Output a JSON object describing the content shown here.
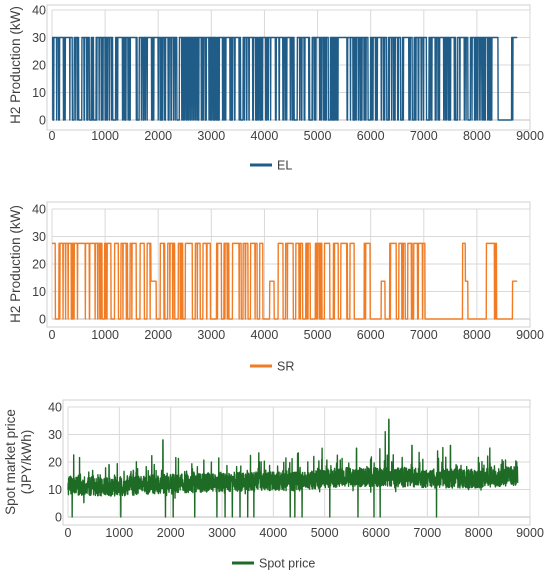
{
  "chart_data": [
    {
      "type": "line",
      "title": "",
      "xlabel": "",
      "ylabel": "H2 Production (kW)",
      "xlim": [
        0,
        9000
      ],
      "ylim": [
        0,
        40
      ],
      "xticks": [
        0,
        1000,
        2000,
        3000,
        4000,
        5000,
        6000,
        7000,
        8000,
        9000
      ],
      "yticks": [
        0,
        10,
        20,
        30,
        40
      ],
      "grid": true,
      "legend_position": "bottom",
      "series": [
        {
          "name": "EL",
          "color": "#1f5c87",
          "pattern": "on-off hourly dispatch between 0 and 30 kW",
          "max_value": 30,
          "min_value": 0,
          "active_segments_hours": [
            [
              0,
              380
            ],
            [
              420,
              500
            ],
            [
              560,
              700
            ],
            [
              740,
              780
            ],
            [
              830,
              1140
            ],
            [
              1200,
              1600
            ],
            [
              1640,
              2350
            ],
            [
              2400,
              3550
            ],
            [
              3600,
              4560
            ],
            [
              4620,
              4850
            ],
            [
              4900,
              5200
            ],
            [
              5240,
              5950
            ],
            [
              6000,
              6300
            ],
            [
              6340,
              6560
            ],
            [
              6600,
              6780
            ],
            [
              6820,
              7050
            ],
            [
              7100,
              7600
            ],
            [
              7640,
              7830
            ],
            [
              7880,
              8400
            ],
            [
              8650,
              8760
            ]
          ],
          "off_gaps_inside_active_hours": [
            220,
            610,
            760,
            1010,
            1330,
            1460,
            1720,
            1880,
            2040,
            2190,
            2480,
            2610,
            2760,
            2900,
            3100,
            3270,
            3440,
            3710,
            3880,
            4030,
            4210,
            4390,
            4700,
            5050,
            5380,
            5560,
            5700,
            5820,
            6120,
            6450,
            6900,
            7230,
            7380,
            7500,
            7960,
            8110,
            8260
          ]
        }
      ]
    },
    {
      "type": "line",
      "title": "",
      "xlabel": "",
      "ylabel": "H2 Production (kW)",
      "xlim": [
        0,
        9000
      ],
      "ylim": [
        0,
        40
      ],
      "xticks": [
        0,
        1000,
        2000,
        3000,
        4000,
        5000,
        6000,
        7000,
        8000,
        9000
      ],
      "yticks": [
        0,
        10,
        20,
        30,
        40
      ],
      "grid": true,
      "legend_position": "bottom",
      "series": [
        {
          "name": "SR",
          "color": "#f07c26",
          "pattern": "on-off dispatch between 0 and ~27.5 kW with occasional ~14 kW partial load",
          "max_value": 27.5,
          "min_value": 0,
          "on_segments_hours": [
            [
              0,
              60
            ],
            [
              130,
              940
            ],
            [
              990,
              1110
            ],
            [
              1180,
              1250
            ],
            [
              1300,
              1420
            ],
            [
              1470,
              1590
            ],
            [
              1660,
              1740
            ],
            [
              1790,
              1860
            ],
            [
              2040,
              2120
            ],
            [
              2180,
              2310
            ],
            [
              2380,
              2460
            ],
            [
              2510,
              2640
            ],
            [
              2700,
              2790
            ],
            [
              2840,
              2980
            ],
            [
              3100,
              3190
            ],
            [
              3240,
              3330
            ],
            [
              3400,
              3560
            ],
            [
              3600,
              3690
            ],
            [
              3740,
              3860
            ],
            [
              3910,
              3970
            ],
            [
              4260,
              4350
            ],
            [
              4400,
              4540
            ],
            [
              4590,
              4720
            ],
            [
              4780,
              4860
            ],
            [
              4960,
              5080
            ],
            [
              5130,
              5230
            ],
            [
              5300,
              5390
            ],
            [
              5440,
              5560
            ],
            [
              5610,
              5690
            ],
            [
              5880,
              5990
            ],
            [
              6360,
              6480
            ],
            [
              6530,
              6650
            ],
            [
              6700,
              6780
            ],
            [
              6810,
              6880
            ],
            [
              6900,
              7020
            ],
            [
              7730,
              7780
            ],
            [
              8180,
              8370
            ]
          ],
          "half_load_segments_hours": [
            [
              1860,
              1960
            ],
            [
              4100,
              4180
            ],
            [
              6200,
              6270
            ],
            [
              7780,
              7830
            ],
            [
              8670,
              8760
            ]
          ]
        }
      ]
    },
    {
      "type": "line",
      "title": "",
      "xlabel": "",
      "ylabel": "Spot market price (JPY/kWh)",
      "xlim": [
        0,
        9000
      ],
      "ylim": [
        0,
        40
      ],
      "xticks": [
        0,
        1000,
        2000,
        3000,
        4000,
        5000,
        6000,
        7000,
        8000,
        9000
      ],
      "yticks": [
        0,
        10,
        20,
        30,
        40
      ],
      "grid": true,
      "legend_position": "bottom",
      "series": [
        {
          "name": "Spot price",
          "color": "#1e6b25",
          "pattern": "noisy hourly price series, mostly 8-20 JPY/kWh",
          "baseline_by_hour": [
            [
              0,
              11.5
            ],
            [
              900,
              11
            ],
            [
              1800,
              12
            ],
            [
              2700,
              12.5
            ],
            [
              3600,
              13
            ],
            [
              4500,
              13
            ],
            [
              5400,
              14.5
            ],
            [
              6300,
              14.5
            ],
            [
              7200,
              14
            ],
            [
              8000,
              14
            ],
            [
              8760,
              15
            ]
          ],
          "spikes": [
            [
              800,
              19
            ],
            [
              1850,
              28
            ],
            [
              4950,
              25
            ],
            [
              5620,
              25
            ],
            [
              6180,
              31
            ],
            [
              6250,
              35.5
            ],
            [
              6700,
              26
            ],
            [
              7200,
              24
            ],
            [
              7450,
              26
            ],
            [
              8740,
              20
            ]
          ],
          "dips_to_zero": [
            80,
            1030,
            1900,
            2050,
            2470,
            2900,
            3060,
            3200,
            3350,
            3500,
            3620,
            4330,
            4420,
            4560,
            5100,
            5650,
            5960,
            6080,
            7180
          ]
        }
      ]
    }
  ]
}
